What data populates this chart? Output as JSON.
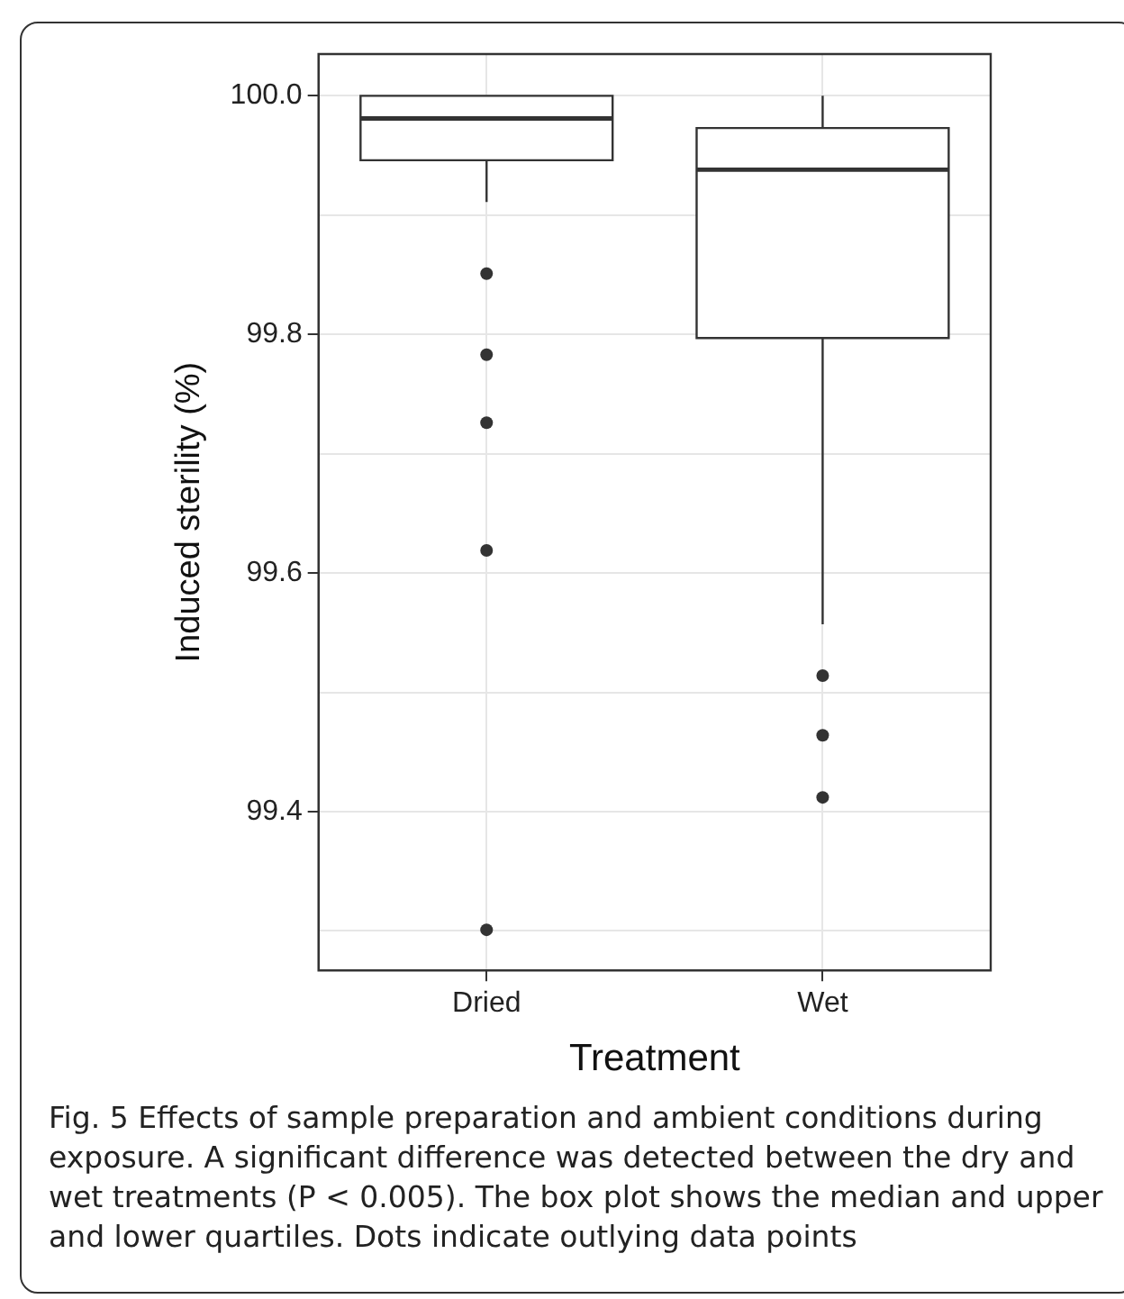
{
  "chart_data": {
    "type": "box",
    "xlabel": "Treatment",
    "ylabel": "Induced sterility (%)",
    "categories": [
      "Dried",
      "Wet"
    ],
    "boxes": [
      {
        "low": 99.911,
        "q1": 99.946,
        "median": 99.981,
        "q3": 100.0,
        "high": 100.0,
        "outliers": [
          99.851,
          99.783,
          99.726,
          99.619,
          99.301
        ]
      },
      {
        "low": 99.557,
        "q1": 99.797,
        "median": 99.938,
        "q3": 99.973,
        "high": 100.0,
        "outliers": [
          99.514,
          99.464,
          99.412
        ]
      }
    ],
    "ylim": [
      99.267,
      100.035
    ],
    "yticks": [
      {
        "value": 99.3,
        "label": null
      },
      99.4,
      {
        "value": 99.5,
        "label": null
      },
      99.6,
      {
        "value": 99.7,
        "label": null
      },
      99.8,
      {
        "value": 99.9,
        "label": null
      },
      {
        "value": 100.0,
        "label": "100.0"
      }
    ],
    "grid": true,
    "annotations": [
      "Fig. 5  Effects of sample preparation and ambient conditions during exposure. A significant difference was detected between the dry and wet treatments (P < 0.005). The box plot shows the median and upper and lower quartiles. Dots indicate outlying data points"
    ]
  }
}
